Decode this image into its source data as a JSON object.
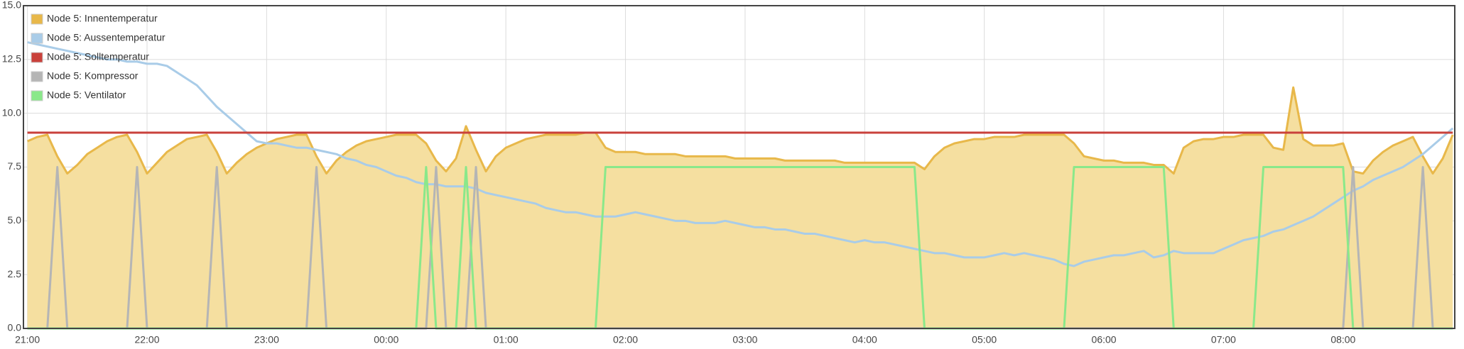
{
  "chart_data": {
    "type": "line",
    "grid": true,
    "legend": "top-left",
    "xlim": [
      "20:58",
      "08:56"
    ],
    "xticks": [
      "21:00",
      "22:00",
      "23:00",
      "00:00",
      "01:00",
      "02:00",
      "03:00",
      "04:00",
      "05:00",
      "06:00",
      "07:00",
      "08:00"
    ],
    "ylim": [
      0,
      15
    ],
    "yticks": [
      {
        "value": 0,
        "label": "0.0"
      },
      2.5,
      {
        "value": 5,
        "label": "5.0"
      },
      7.5,
      {
        "value": 10,
        "label": "10.0"
      },
      12.5,
      {
        "value": 15,
        "label": "15.0"
      }
    ],
    "x": [
      "21:00",
      "21:05",
      "21:10",
      "21:15",
      "21:20",
      "21:25",
      "21:30",
      "21:35",
      "21:40",
      "21:45",
      "21:50",
      "21:55",
      "22:00",
      "22:05",
      "22:10",
      "22:15",
      "22:20",
      "22:25",
      "22:30",
      "22:35",
      "22:40",
      "22:45",
      "22:50",
      "22:55",
      "23:00",
      "23:05",
      "23:10",
      "23:15",
      "23:20",
      "23:25",
      "23:30",
      "23:35",
      "23:40",
      "23:45",
      "23:50",
      "23:55",
      "00:00",
      "00:05",
      "00:10",
      "00:15",
      "00:20",
      "00:25",
      "00:30",
      "00:35",
      "00:40",
      "00:45",
      "00:50",
      "00:55",
      "01:00",
      "01:05",
      "01:10",
      "01:15",
      "01:20",
      "01:25",
      "01:30",
      "01:35",
      "01:40",
      "01:45",
      "01:50",
      "01:55",
      "02:00",
      "02:05",
      "02:10",
      "02:15",
      "02:20",
      "02:25",
      "02:30",
      "02:35",
      "02:40",
      "02:45",
      "02:50",
      "02:55",
      "03:00",
      "03:05",
      "03:10",
      "03:15",
      "03:20",
      "03:25",
      "03:30",
      "03:35",
      "03:40",
      "03:45",
      "03:50",
      "03:55",
      "04:00",
      "04:05",
      "04:10",
      "04:15",
      "04:20",
      "04:25",
      "04:30",
      "04:35",
      "04:40",
      "04:45",
      "04:50",
      "04:55",
      "05:00",
      "05:05",
      "05:10",
      "05:15",
      "05:20",
      "05:25",
      "05:30",
      "05:35",
      "05:40",
      "05:45",
      "05:50",
      "05:55",
      "06:00",
      "06:05",
      "06:10",
      "06:15",
      "06:20",
      "06:25",
      "06:30",
      "06:35",
      "06:40",
      "06:45",
      "06:50",
      "06:55",
      "07:00",
      "07:05",
      "07:10",
      "07:15",
      "07:20",
      "07:25",
      "07:30",
      "07:35",
      "07:40",
      "07:45",
      "07:50",
      "07:55",
      "08:00",
      "08:05",
      "08:10",
      "08:15",
      "08:20",
      "08:25",
      "08:30",
      "08:35",
      "08:40",
      "08:45",
      "08:50",
      "08:55"
    ],
    "series": [
      {
        "name": "Node 5: Innentemperatur",
        "color": "#e8b84a",
        "fill": "#f5dfa0",
        "area": true,
        "values": [
          8.7,
          8.9,
          9.0,
          8.0,
          7.2,
          7.6,
          8.1,
          8.4,
          8.7,
          8.9,
          9.0,
          8.2,
          7.2,
          7.7,
          8.2,
          8.5,
          8.8,
          8.9,
          9.0,
          8.2,
          7.2,
          7.7,
          8.1,
          8.4,
          8.6,
          8.8,
          8.9,
          9.0,
          9.0,
          8.0,
          7.2,
          7.8,
          8.2,
          8.5,
          8.7,
          8.8,
          8.9,
          9.0,
          9.0,
          9.0,
          8.6,
          7.8,
          7.3,
          7.9,
          9.4,
          8.3,
          7.3,
          8.0,
          8.4,
          8.6,
          8.8,
          8.9,
          9.0,
          9.0,
          9.0,
          9.0,
          9.1,
          9.1,
          8.4,
          8.2,
          8.2,
          8.2,
          8.1,
          8.1,
          8.1,
          8.1,
          8.0,
          8.0,
          8.0,
          8.0,
          8.0,
          7.9,
          7.9,
          7.9,
          7.9,
          7.9,
          7.8,
          7.8,
          7.8,
          7.8,
          7.8,
          7.8,
          7.7,
          7.7,
          7.7,
          7.7,
          7.7,
          7.7,
          7.7,
          7.7,
          7.4,
          8.0,
          8.4,
          8.6,
          8.7,
          8.8,
          8.8,
          8.9,
          8.9,
          8.9,
          9.0,
          9.0,
          9.0,
          9.0,
          9.0,
          8.6,
          8.0,
          7.9,
          7.8,
          7.8,
          7.7,
          7.7,
          7.7,
          7.6,
          7.6,
          7.2,
          8.4,
          8.7,
          8.8,
          8.8,
          8.9,
          8.9,
          9.0,
          9.0,
          9.0,
          8.4,
          8.3,
          11.2,
          8.8,
          8.5,
          8.5,
          8.5,
          8.6,
          7.3,
          7.2,
          7.8,
          8.2,
          8.5,
          8.7,
          8.9,
          8.0,
          7.2,
          7.9,
          9.0
        ]
      },
      {
        "name": "Node 5: Aussentemperatur",
        "color": "#a9cce8",
        "values": [
          13.3,
          13.2,
          13.1,
          13.0,
          12.9,
          12.8,
          12.7,
          12.6,
          12.5,
          12.5,
          12.4,
          12.4,
          12.3,
          12.3,
          12.2,
          11.9,
          11.6,
          11.3,
          10.8,
          10.3,
          9.9,
          9.5,
          9.1,
          8.7,
          8.6,
          8.6,
          8.5,
          8.4,
          8.4,
          8.3,
          8.2,
          8.1,
          7.9,
          7.8,
          7.6,
          7.5,
          7.3,
          7.1,
          7.0,
          6.8,
          6.7,
          6.7,
          6.6,
          6.6,
          6.6,
          6.5,
          6.3,
          6.2,
          6.1,
          6.0,
          5.9,
          5.8,
          5.6,
          5.5,
          5.4,
          5.4,
          5.3,
          5.2,
          5.2,
          5.2,
          5.3,
          5.4,
          5.3,
          5.2,
          5.1,
          5.0,
          5.0,
          4.9,
          4.9,
          4.9,
          5.0,
          4.9,
          4.8,
          4.7,
          4.7,
          4.6,
          4.6,
          4.5,
          4.4,
          4.4,
          4.3,
          4.2,
          4.1,
          4.0,
          4.1,
          4.0,
          4.0,
          3.9,
          3.8,
          3.7,
          3.6,
          3.5,
          3.5,
          3.4,
          3.3,
          3.3,
          3.3,
          3.4,
          3.5,
          3.4,
          3.5,
          3.4,
          3.3,
          3.2,
          3.0,
          2.9,
          3.1,
          3.2,
          3.3,
          3.4,
          3.4,
          3.5,
          3.6,
          3.3,
          3.4,
          3.6,
          3.5,
          3.5,
          3.5,
          3.5,
          3.7,
          3.9,
          4.1,
          4.2,
          4.3,
          4.5,
          4.6,
          4.8,
          5.0,
          5.2,
          5.5,
          5.8,
          6.1,
          6.4,
          6.6,
          6.9,
          7.1,
          7.3,
          7.5,
          7.8,
          8.1,
          8.5,
          8.9,
          9.3
        ]
      },
      {
        "name": "Node 5: Solltemperatur",
        "color": "#c9413b",
        "values": [
          9.1,
          9.1,
          9.1,
          9.1,
          9.1,
          9.1,
          9.1,
          9.1,
          9.1,
          9.1,
          9.1,
          9.1,
          9.1,
          9.1,
          9.1,
          9.1,
          9.1,
          9.1,
          9.1,
          9.1,
          9.1,
          9.1,
          9.1,
          9.1,
          9.1,
          9.1,
          9.1,
          9.1,
          9.1,
          9.1,
          9.1,
          9.1,
          9.1,
          9.1,
          9.1,
          9.1,
          9.1,
          9.1,
          9.1,
          9.1,
          9.1,
          9.1,
          9.1,
          9.1,
          9.1,
          9.1,
          9.1,
          9.1,
          9.1,
          9.1,
          9.1,
          9.1,
          9.1,
          9.1,
          9.1,
          9.1,
          9.1,
          9.1,
          9.1,
          9.1,
          9.1,
          9.1,
          9.1,
          9.1,
          9.1,
          9.1,
          9.1,
          9.1,
          9.1,
          9.1,
          9.1,
          9.1,
          9.1,
          9.1,
          9.1,
          9.1,
          9.1,
          9.1,
          9.1,
          9.1,
          9.1,
          9.1,
          9.1,
          9.1,
          9.1,
          9.1,
          9.1,
          9.1,
          9.1,
          9.1,
          9.1,
          9.1,
          9.1,
          9.1,
          9.1,
          9.1,
          9.1,
          9.1,
          9.1,
          9.1,
          9.1,
          9.1,
          9.1,
          9.1,
          9.1,
          9.1,
          9.1,
          9.1,
          9.1,
          9.1,
          9.1,
          9.1,
          9.1,
          9.1,
          9.1,
          9.1,
          9.1,
          9.1,
          9.1,
          9.1,
          9.1,
          9.1,
          9.1,
          9.1,
          9.1,
          9.1,
          9.1,
          9.1,
          9.1,
          9.1,
          9.1,
          9.1,
          9.1,
          9.1,
          9.1,
          9.1,
          9.1,
          9.1,
          9.1,
          9.1,
          9.1,
          9.1,
          9.1,
          9.1
        ]
      },
      {
        "name": "Node 5: Kompressor",
        "color": "#b5b5b5",
        "values": [
          0,
          0,
          0,
          7.5,
          0,
          0,
          0,
          0,
          0,
          0,
          0,
          7.5,
          0,
          0,
          0,
          0,
          0,
          0,
          0,
          7.5,
          0,
          0,
          0,
          0,
          0,
          0,
          0,
          0,
          0,
          7.5,
          0,
          0,
          0,
          0,
          0,
          0,
          0,
          0,
          0,
          0,
          0,
          7.5,
          0,
          0,
          0,
          7.5,
          0,
          0,
          0,
          0,
          0,
          0,
          0,
          0,
          0,
          0,
          0,
          0,
          0,
          0,
          0,
          0,
          0,
          0,
          0,
          0,
          0,
          0,
          0,
          0,
          0,
          0,
          0,
          0,
          0,
          0,
          0,
          0,
          0,
          0,
          0,
          0,
          0,
          0,
          0,
          0,
          0,
          0,
          0,
          0,
          0,
          0,
          0,
          0,
          0,
          0,
          0,
          0,
          0,
          0,
          0,
          0,
          0,
          0,
          0,
          0,
          0,
          0,
          0,
          0,
          0,
          0,
          0,
          0,
          0,
          0,
          0,
          0,
          0,
          0,
          0,
          0,
          0,
          0,
          0,
          0,
          0,
          0,
          0,
          0,
          0,
          0,
          0,
          7.5,
          0,
          0,
          0,
          0,
          0,
          0,
          7.5,
          0,
          0,
          0
        ]
      },
      {
        "name": "Node 5: Ventilator",
        "color": "#8ae88a",
        "values": [
          0,
          0,
          0,
          0,
          0,
          0,
          0,
          0,
          0,
          0,
          0,
          0,
          0,
          0,
          0,
          0,
          0,
          0,
          0,
          0,
          0,
          0,
          0,
          0,
          0,
          0,
          0,
          0,
          0,
          0,
          0,
          0,
          0,
          0,
          0,
          0,
          0,
          0,
          0,
          0,
          7.5,
          0,
          0,
          0,
          7.5,
          0,
          0,
          0,
          0,
          0,
          0,
          0,
          0,
          0,
          0,
          0,
          0,
          0,
          7.5,
          7.5,
          7.5,
          7.5,
          7.5,
          7.5,
          7.5,
          7.5,
          7.5,
          7.5,
          7.5,
          7.5,
          7.5,
          7.5,
          7.5,
          7.5,
          7.5,
          7.5,
          7.5,
          7.5,
          7.5,
          7.5,
          7.5,
          7.5,
          7.5,
          7.5,
          7.5,
          7.5,
          7.5,
          7.5,
          7.5,
          7.5,
          0,
          0,
          0,
          0,
          0,
          0,
          0,
          0,
          0,
          0,
          0,
          0,
          0,
          0,
          0,
          7.5,
          7.5,
          7.5,
          7.5,
          7.5,
          7.5,
          7.5,
          7.5,
          7.5,
          7.5,
          0,
          0,
          0,
          0,
          0,
          0,
          0,
          0,
          0,
          7.5,
          7.5,
          7.5,
          7.5,
          7.5,
          7.5,
          7.5,
          7.5,
          7.5,
          0,
          0,
          0,
          0,
          0,
          0,
          0,
          0,
          0,
          0,
          0
        ]
      }
    ]
  }
}
